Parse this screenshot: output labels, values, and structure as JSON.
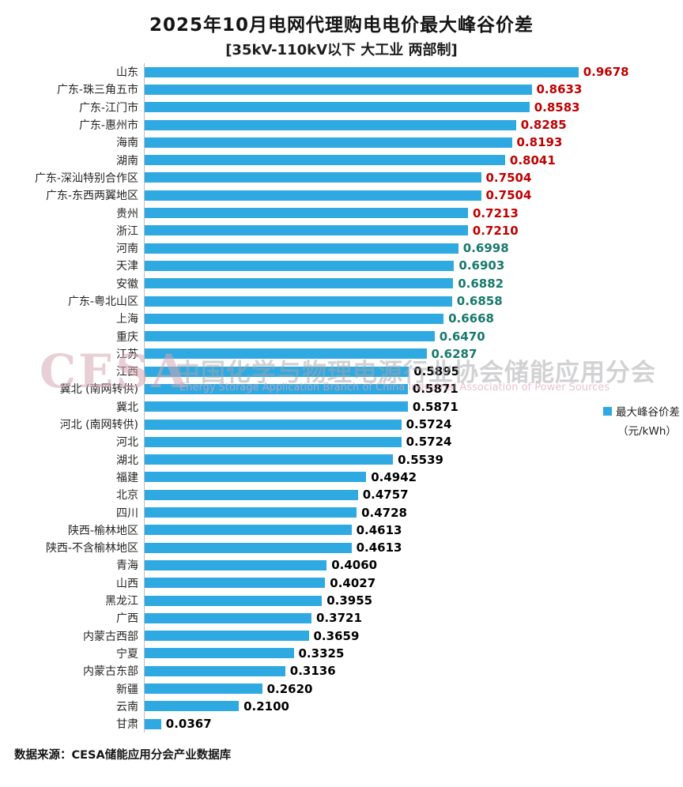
{
  "chart_data": {
    "type": "bar",
    "orientation": "horizontal",
    "title": "2025年10月电网代理购电电价最大峰谷价差",
    "subtitle": "[35kV-110kV以下 大工业 两部制]",
    "unit": "元/kWh",
    "xlim": [
      0,
      1.0
    ],
    "grid": false,
    "legend": {
      "label": "最大峰谷价差",
      "unit_label": "（元/kWh）",
      "position": "right"
    },
    "items": [
      {
        "label": "山东",
        "value": 0.9678,
        "tier": "high"
      },
      {
        "label": "广东-珠三角五市",
        "value": 0.8633,
        "tier": "high"
      },
      {
        "label": "广东-江门市",
        "value": 0.8583,
        "tier": "high"
      },
      {
        "label": "广东-惠州市",
        "value": 0.8285,
        "tier": "high"
      },
      {
        "label": "海南",
        "value": 0.8193,
        "tier": "high"
      },
      {
        "label": "湖南",
        "value": 0.8041,
        "tier": "high"
      },
      {
        "label": "广东-深汕特别合作区",
        "value": 0.7504,
        "tier": "high"
      },
      {
        "label": "广东-东西两翼地区",
        "value": 0.7504,
        "tier": "high"
      },
      {
        "label": "贵州",
        "value": 0.7213,
        "tier": "high"
      },
      {
        "label": "浙江",
        "value": 0.721,
        "tier": "high"
      },
      {
        "label": "河南",
        "value": 0.6998,
        "tier": "mid"
      },
      {
        "label": "天津",
        "value": 0.6903,
        "tier": "mid"
      },
      {
        "label": "安徽",
        "value": 0.6882,
        "tier": "mid"
      },
      {
        "label": "广东-粤北山区",
        "value": 0.6858,
        "tier": "mid"
      },
      {
        "label": "上海",
        "value": 0.6668,
        "tier": "mid"
      },
      {
        "label": "重庆",
        "value": 0.647,
        "tier": "mid"
      },
      {
        "label": "江苏",
        "value": 0.6287,
        "tier": "mid"
      },
      {
        "label": "江西",
        "value": 0.5895,
        "tier": "low"
      },
      {
        "label": "冀北 (南网转供)",
        "value": 0.5871,
        "tier": "low"
      },
      {
        "label": "冀北",
        "value": 0.5871,
        "tier": "low"
      },
      {
        "label": "河北 (南网转供)",
        "value": 0.5724,
        "tier": "low"
      },
      {
        "label": "河北",
        "value": 0.5724,
        "tier": "low"
      },
      {
        "label": "湖北",
        "value": 0.5539,
        "tier": "low"
      },
      {
        "label": "福建",
        "value": 0.4942,
        "tier": "low"
      },
      {
        "label": "北京",
        "value": 0.4757,
        "tier": "low"
      },
      {
        "label": "四川",
        "value": 0.4728,
        "tier": "low"
      },
      {
        "label": "陕西-榆林地区",
        "value": 0.4613,
        "tier": "low"
      },
      {
        "label": "陕西-不含榆林地区",
        "value": 0.4613,
        "tier": "low"
      },
      {
        "label": "青海",
        "value": 0.406,
        "tier": "low"
      },
      {
        "label": "山西",
        "value": 0.4027,
        "tier": "low"
      },
      {
        "label": "黑龙江",
        "value": 0.3955,
        "tier": "low"
      },
      {
        "label": "广西",
        "value": 0.3721,
        "tier": "low"
      },
      {
        "label": "内蒙古西部",
        "value": 0.3659,
        "tier": "low"
      },
      {
        "label": "宁夏",
        "value": 0.3325,
        "tier": "low"
      },
      {
        "label": "内蒙古东部",
        "value": 0.3136,
        "tier": "low"
      },
      {
        "label": "新疆",
        "value": 0.262,
        "tier": "low"
      },
      {
        "label": "云南",
        "value": 0.21,
        "tier": "low"
      },
      {
        "label": "甘肃",
        "value": 0.0367,
        "tier": "low"
      }
    ]
  },
  "colors": {
    "bar": "#2ea9e1",
    "high": "#c00000",
    "mid": "#17796c",
    "low": "#000000",
    "axis": "#bfbfbf"
  },
  "watermark": {
    "logo": "CESA",
    "cn": "中国化学与物理电源行业协会储能应用分会",
    "en": "Energy Storage Application Branch of China Industrial Association of Power Sources"
  },
  "footer": {
    "source": "数据来源：CESA储能应用分会产业数据库"
  }
}
